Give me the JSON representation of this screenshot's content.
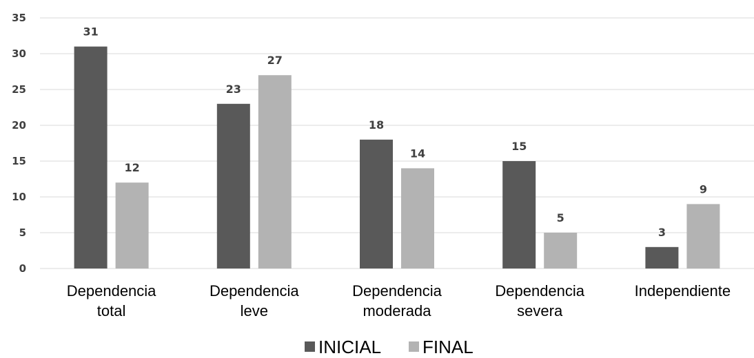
{
  "chart_data": {
    "type": "bar",
    "categories": [
      [
        "Dependencia",
        "total"
      ],
      [
        "Dependencia",
        "leve"
      ],
      [
        "Dependencia",
        "moderada"
      ],
      [
        "Dependencia",
        "severa"
      ],
      [
        "Independiente"
      ]
    ],
    "series": [
      {
        "name": "INICIAL",
        "values": [
          31,
          23,
          18,
          15,
          3
        ],
        "color": "#595959"
      },
      {
        "name": "FINAL",
        "values": [
          12,
          27,
          14,
          5,
          9
        ],
        "color": "#b3b3b3"
      }
    ],
    "ylim": [
      0,
      35
    ],
    "yticks": [
      0,
      5,
      10,
      15,
      20,
      25,
      30,
      35
    ],
    "grid": true,
    "legend_position": "bottom",
    "data_labels": true,
    "title": "",
    "xlabel": "",
    "ylabel": ""
  }
}
